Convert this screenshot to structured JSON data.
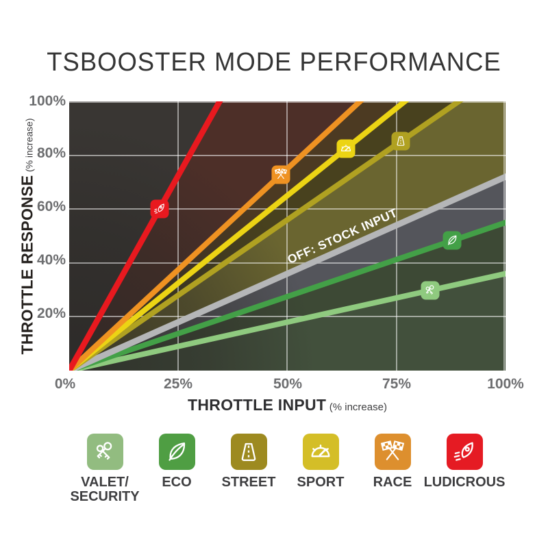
{
  "title": "TSBOOSTER MODE PERFORMANCE",
  "chart_data": {
    "type": "line",
    "title": "TSBOOSTER MODE PERFORMANCE",
    "xlabel": "THROTTLE INPUT",
    "xlabel_unit": "(% increase)",
    "ylabel": "THROTTLE RESPONSE",
    "ylabel_unit": "(% increase)",
    "xlim": [
      0,
      100
    ],
    "ylim": [
      0,
      100
    ],
    "grid": true,
    "x_ticks": [
      "0%",
      "25%",
      "50%",
      "75%",
      "100%"
    ],
    "y_ticks": [
      "100%",
      "80%",
      "60%",
      "40%",
      "20%"
    ],
    "series": [
      {
        "key": "valet",
        "label": "VALET/SECURITY",
        "color": "#8fca7f",
        "slope": 0.36,
        "marker_x": 82.7,
        "icon": "keys-icon",
        "description": "y = 0.36x, reaches 36% response at 100% input"
      },
      {
        "key": "eco",
        "label": "ECO",
        "color": "#43a047",
        "slope": 0.55,
        "marker_x": 87.7,
        "icon": "leaf-icon",
        "description": "y = 0.55x, reaches 55% response at 100% input"
      },
      {
        "key": "stock",
        "label": "OFF: STOCK INPUT",
        "color": "#b5b6b8",
        "slope": 0.72,
        "marker_x": null,
        "icon": "none",
        "description": "y = 0.72x, reaches 72% response at 100% input"
      },
      {
        "key": "street",
        "label": "STREET",
        "color": "#b0a121",
        "slope": 1.12,
        "marker_x": 76.0,
        "icon": "road-icon",
        "description": "y = 1.12x, hits 100% response near 89% input"
      },
      {
        "key": "sport",
        "label": "SPORT",
        "color": "#ecd414",
        "slope": 1.3,
        "marker_x": 63.4,
        "icon": "gauge-icon",
        "description": "y = 1.30x, hits 100% response near 77% input"
      },
      {
        "key": "race",
        "label": "RACE",
        "color": "#ef9222",
        "slope": 1.5,
        "marker_x": 48.5,
        "icon": "flags-icon",
        "description": "y = 1.50x, hits 100% response near 67% input"
      },
      {
        "key": "ludicrous",
        "label": "LUDICROUS",
        "color": "#e8191f",
        "slope": 2.9,
        "marker_x": 20.7,
        "icon": "rocket-icon",
        "description": "y = 2.90x, hits 100% response near 34% input"
      }
    ],
    "legend_position": "bottom"
  },
  "legend": {
    "items": [
      {
        "key": "valet",
        "label": "VALET/",
        "label2": "SECURITY",
        "color": "#92bc80",
        "icon": "keys-icon"
      },
      {
        "key": "eco",
        "label": "ECO",
        "color": "#4f9e43",
        "icon": "leaf-icon"
      },
      {
        "key": "street",
        "label": "STREET",
        "color": "#9d8a20",
        "icon": "road-icon"
      },
      {
        "key": "sport",
        "label": "SPORT",
        "color": "#d4be27",
        "icon": "gauge-icon"
      },
      {
        "key": "race",
        "label": "RACE",
        "color": "#dd8f2e",
        "icon": "flags-icon"
      },
      {
        "key": "ludicrous",
        "label": "LUDICROUS",
        "color": "#e51b23",
        "icon": "rocket-icon"
      }
    ]
  },
  "colors": {
    "background": "#ffffff",
    "grid": "rgba(255,255,255,0.5)",
    "tick_text": "#6d6e70",
    "axis_title_text": "#26221f",
    "plot_wedges": [
      "#393633",
      "#4d2f28",
      "#4c3a22",
      "#48411e",
      "#6a6530",
      "#54555b",
      "#3d4935",
      "#42503c"
    ]
  }
}
